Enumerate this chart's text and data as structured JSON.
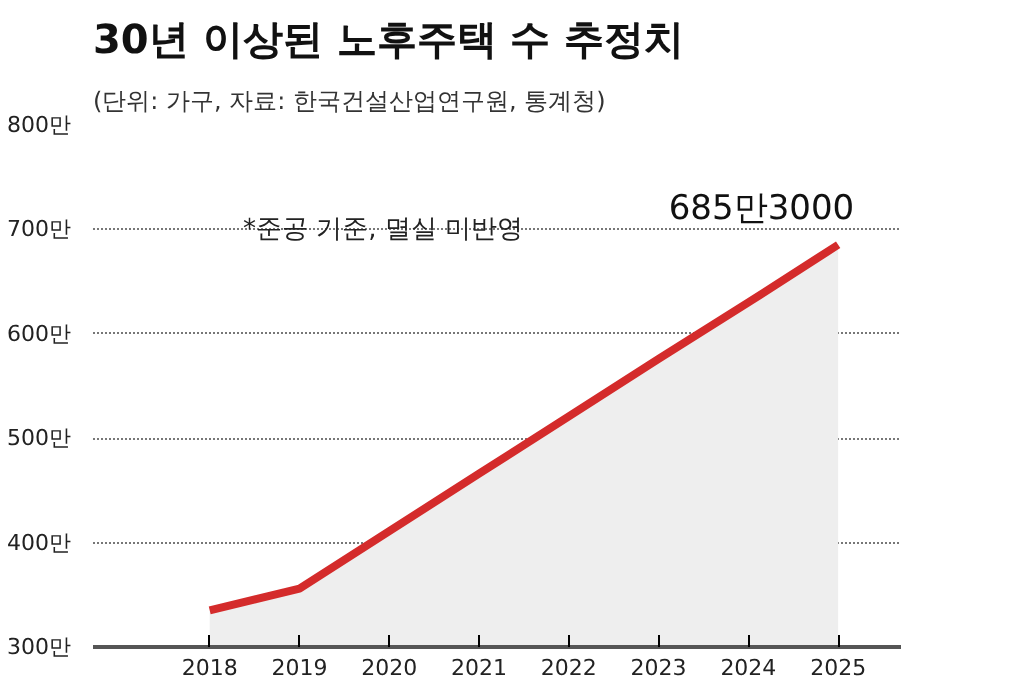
{
  "chart_data": {
    "type": "area",
    "title": "30년 이상된 노후주택 수 추정치",
    "subtitle": "(단위: 가구, 자료: 한국건설산업연구원, 통계청)",
    "x": [
      2018,
      2019,
      2020,
      2021,
      2022,
      2023,
      2024,
      2025
    ],
    "series": [
      {
        "color": "#d42b2b",
        "values": [
          335,
          356,
          411,
          466,
          521,
          576,
          630,
          685.3
        ]
      }
    ],
    "xlim": [
      2016.7,
      2025.7
    ],
    "xticks": [
      2018,
      2019,
      2020,
      2021,
      2022,
      2023,
      2024,
      2025
    ],
    "ylim": [
      300,
      800
    ],
    "yticks": [
      {
        "value": 300,
        "label": "300만"
      },
      {
        "value": 400,
        "label": "400만"
      },
      {
        "value": 500,
        "label": "500만"
      },
      {
        "value": 600,
        "label": "600만"
      },
      {
        "value": 700,
        "label": "700만"
      },
      {
        "value": 800,
        "label": "800만"
      }
    ],
    "grid": "y",
    "line_style": "solid",
    "annotations": [
      "*준공 기준, 멸실 미반영",
      {
        "text": "685만3000",
        "x": 2025,
        "y": 685.3
      }
    ]
  }
}
